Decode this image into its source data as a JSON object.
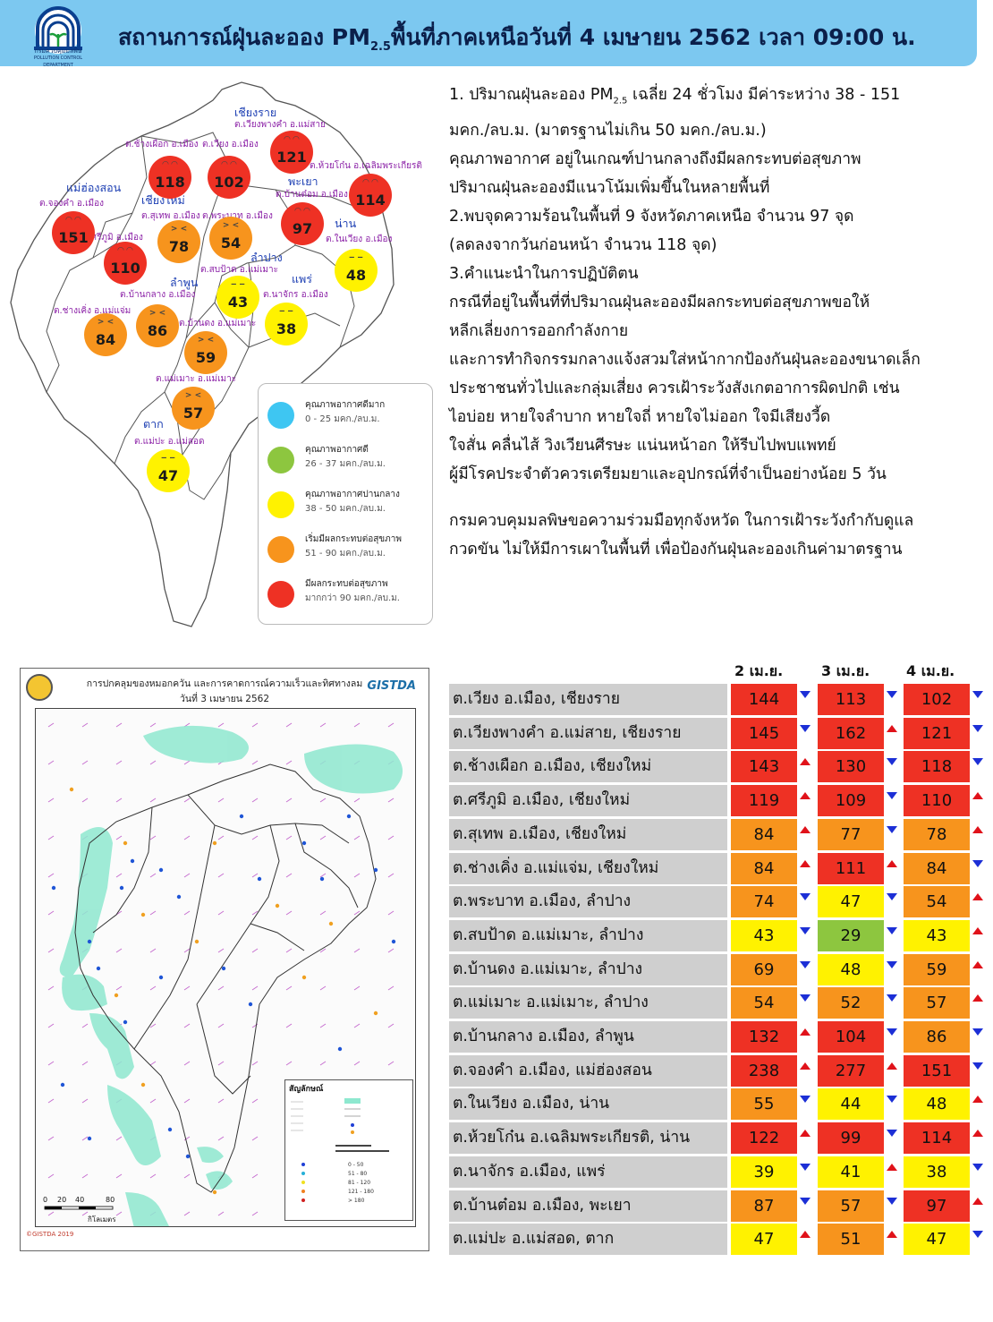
{
  "header": {
    "title_pre": "สถานการณ์ฝุ่นละออง PM",
    "title_sub": "2.5",
    "title_post": "พื้นที่ภาคเหนือวันที่ 4 เมษายน 2562 เวลา 09:00 น.",
    "logo_text": "กรมควบคุมมลพิษ",
    "logo_subtext": "POLLUTION CONTROL DEPARTMENT"
  },
  "colors": {
    "header_bg": "#7cc8f0",
    "very_good": "#3ec6f2",
    "good": "#8dc63f",
    "moderate": "#fff200",
    "unhealthy_start": "#f7941d",
    "unhealthy": "#ee3124",
    "arrow_up": "#e0121a",
    "arrow_down": "#1c2fd6"
  },
  "map": {
    "provinces": [
      {
        "name": "เชียงราย"
      },
      {
        "name": "แม่ฮ่องสอน"
      },
      {
        "name": "เชียงใหม่"
      },
      {
        "name": "พะเยา"
      },
      {
        "name": "น่าน"
      },
      {
        "name": "ลำปาง"
      },
      {
        "name": "ลำพูน"
      },
      {
        "name": "แพร่"
      },
      {
        "name": "ตาก"
      }
    ],
    "stations": [
      {
        "label": "ต.เวียงพางคำ อ.แม่สาย",
        "value": "121",
        "level": "unhealthy"
      },
      {
        "label": "ต.ช้างเผือก อ.เมือง",
        "value": "118",
        "level": "unhealthy"
      },
      {
        "label": "ต.เวียง อ.เมือง",
        "value": "102",
        "level": "unhealthy"
      },
      {
        "label": "ต.ห้วยโก๋น อ.เฉลิมพระเกียรติ",
        "value": "114",
        "level": "unhealthy"
      },
      {
        "label": "ต.จองคำ อ.เมือง",
        "value": "151",
        "level": "unhealthy"
      },
      {
        "label": "ต.สุเทพ อ.เมือง",
        "value": "78",
        "level": "unhealthy_start"
      },
      {
        "label": "ต.พระบาท อ.เมือง",
        "value": "54",
        "level": "unhealthy_start"
      },
      {
        "label": "ต.บ้านต๋อม อ.เมือง",
        "value": "97",
        "level": "unhealthy"
      },
      {
        "label": "ต.ในเวียง อ.เมือง",
        "value": "48",
        "level": "moderate"
      },
      {
        "label": "ต.ศรีภูมิ อ.เมือง",
        "value": "110",
        "level": "unhealthy"
      },
      {
        "label": "ต.สบป้าด อ.แม่เมาะ",
        "value": "43",
        "level": "moderate"
      },
      {
        "label": "ต.นาจักร อ.เมือง",
        "value": "38",
        "level": "moderate"
      },
      {
        "label": "ต.บ้านกลาง อ.เมือง",
        "value": "86",
        "level": "unhealthy_start"
      },
      {
        "label": "ต.ช่างเคิ่ง อ.แม่แจ่ม",
        "value": "84",
        "level": "unhealthy_start"
      },
      {
        "label": "ต.บ้านดง อ.แม่เมาะ",
        "value": "59",
        "level": "unhealthy_start"
      },
      {
        "label": "ต.แม่เมาะ อ.แม่เมาะ",
        "value": "57",
        "level": "unhealthy_start"
      },
      {
        "label": "ต.แม่ปะ อ.แม่สอด",
        "value": "47",
        "level": "moderate"
      }
    ]
  },
  "legend": [
    {
      "title": "คุณภาพอากาศดีมาก",
      "range": "0 - 25 มคก./ลบ.ม.",
      "level": "very_good"
    },
    {
      "title": "คุณภาพอากาศดี",
      "range": "26 - 37 มคก./ลบ.ม.",
      "level": "good"
    },
    {
      "title": "คุณภาพอากาศปานกลาง",
      "range": "38 - 50 มคก./ลบ.ม.",
      "level": "moderate"
    },
    {
      "title": "เริ่มมีผลกระทบต่อสุขภาพ",
      "range": "51 - 90 มคก./ลบ.ม.",
      "level": "unhealthy_start"
    },
    {
      "title": "มีผลกระทบต่อสุขภาพ",
      "range": "มากกว่า 90 มคก./ลบ.ม.",
      "level": "unhealthy"
    }
  ],
  "summary": {
    "line1_pre": "1. ปริมาณฝุ่นละออง PM",
    "line1_sub": "2.5",
    "line1_post": " เฉลี่ย 24 ชั่วโมง มีค่าระหว่าง 38 - 151",
    "lines": [
      "มคก./ลบ.ม. (มาตรฐานไม่เกิน 50 มคก./ลบ.ม.)",
      "คุณภาพอากาศ อยู่ในเกณฑ์ปานกลางถึงมีผลกระทบต่อสุขภาพ",
      "ปริมาณฝุ่นละอองมีแนวโน้มเพิ่มขึ้นในหลายพื้นที่",
      "2.พบจุดความร้อนในพื้นที่ 9 จังหวัดภาคเหนือ จำนวน 97 จุด",
      "(ลดลงจากวันก่อนหน้า จำนวน 118 จุด)",
      "3.คำแนะนำในการปฏิบัติตน",
      "กรณีที่อยู่ในพื้นที่ที่ปริมาณฝุ่นละอองมีผลกระทบต่อสุขภาพขอให้",
      "หลีกเลี่ยงการออกกำลังกาย",
      "และการทำกิจกรรมกลางแจ้งสวมใส่หน้ากากป้องกันฝุ่นละอองขนาดเล็ก",
      "ประชาชนทั่วไปและกลุ่มเสี่ยง ควรเฝ้าระวังสังเกตอาการผิดปกติ เช่น",
      "ไอบ่อย หายใจลำบาก หายใจถี่ หายใจไม่ออก ใจมีเสียงวี้ด",
      "ใจสั่น คลื่นไส้ วิงเวียนศีรษะ แน่นหน้าอก ให้รีบไปพบแพทย์",
      "ผู้มีโรคประจำตัวควรเตรียมยาและอุปกรณ์ที่จำเป็นอย่างน้อย 5 วัน"
    ],
    "closing": [
      "กรมควบคุมมลพิษขอความร่วมมือทุกจังหวัด ในการเฝ้าระวังกำกับดูแล",
      "กวดขัน ไม่ให้มีการเผาในพื้นที่ เพื่อป้องกันฝุ่นละอองเกินค่ามาตรฐาน"
    ]
  },
  "forecast_map": {
    "title": "การปกคลุมของหมอกควัน และการคาดการณ์ความเร็วและทิศทางลม",
    "date": "วันที่ 3 เมษายน 2562",
    "brand": "GISTDA",
    "legend_title": "สัญลักษณ์",
    "scale_labels": [
      "0",
      "20",
      "40",
      "80"
    ],
    "scale_unit": "กิโลเมตร",
    "copyright": "©GISTDA 2019"
  },
  "table": {
    "dates": [
      "2 เม.ย.",
      "3 เม.ย.",
      "4 เม.ย."
    ],
    "rows": [
      {
        "name": "ต.เวียง อ.เมือง, เชียงราย",
        "values": [
          "144",
          "113",
          "102"
        ],
        "levels": [
          "unhealthy",
          "unhealthy",
          "unhealthy"
        ],
        "trends": [
          "down",
          "down",
          "down"
        ]
      },
      {
        "name": "ต.เวียงพางคำ อ.แม่สาย, เชียงราย",
        "values": [
          "145",
          "162",
          "121"
        ],
        "levels": [
          "unhealthy",
          "unhealthy",
          "unhealthy"
        ],
        "trends": [
          "down",
          "up",
          "down"
        ]
      },
      {
        "name": "ต.ช้างเผือก อ.เมือง, เชียงใหม่",
        "values": [
          "143",
          "130",
          "118"
        ],
        "levels": [
          "unhealthy",
          "unhealthy",
          "unhealthy"
        ],
        "trends": [
          "up",
          "down",
          "down"
        ]
      },
      {
        "name": "ต.ศรีภูมิ อ.เมือง, เชียงใหม่",
        "values": [
          "119",
          "109",
          "110"
        ],
        "levels": [
          "unhealthy",
          "unhealthy",
          "unhealthy"
        ],
        "trends": [
          "up",
          "down",
          "up"
        ]
      },
      {
        "name": "ต.สุเทพ อ.เมือง, เชียงใหม่",
        "values": [
          "84",
          "77",
          "78"
        ],
        "levels": [
          "unhealthy_start",
          "unhealthy_start",
          "unhealthy_start"
        ],
        "trends": [
          "up",
          "down",
          "up"
        ]
      },
      {
        "name": "ต.ช่างเคิ่ง อ.แม่แจ่ม, เชียงใหม่",
        "values": [
          "84",
          "111",
          "84"
        ],
        "levels": [
          "unhealthy_start",
          "unhealthy",
          "unhealthy_start"
        ],
        "trends": [
          "up",
          "up",
          "down"
        ]
      },
      {
        "name": "ต.พระบาท อ.เมือง, ลำปาง",
        "values": [
          "74",
          "47",
          "54"
        ],
        "levels": [
          "unhealthy_start",
          "moderate",
          "unhealthy_start"
        ],
        "trends": [
          "down",
          "down",
          "up"
        ]
      },
      {
        "name": "ต.สบป้าด อ.แม่เมาะ, ลำปาง",
        "values": [
          "43",
          "29",
          "43"
        ],
        "levels": [
          "moderate",
          "good",
          "moderate"
        ],
        "trends": [
          "down",
          "down",
          "up"
        ]
      },
      {
        "name": "ต.บ้านดง อ.แม่เมาะ, ลำปาง",
        "values": [
          "69",
          "48",
          "59"
        ],
        "levels": [
          "unhealthy_start",
          "moderate",
          "unhealthy_start"
        ],
        "trends": [
          "down",
          "down",
          "up"
        ]
      },
      {
        "name": "ต.แม่เมาะ อ.แม่เมาะ, ลำปาง",
        "values": [
          "54",
          "52",
          "57"
        ],
        "levels": [
          "unhealthy_start",
          "unhealthy_start",
          "unhealthy_start"
        ],
        "trends": [
          "down",
          "down",
          "up"
        ]
      },
      {
        "name": "ต.บ้านกลาง อ.เมือง, ลำพูน",
        "values": [
          "132",
          "104",
          "86"
        ],
        "levels": [
          "unhealthy",
          "unhealthy",
          "unhealthy_start"
        ],
        "trends": [
          "up",
          "down",
          "down"
        ]
      },
      {
        "name": "ต.จองคำ อ.เมือง, แม่ฮ่องสอน",
        "values": [
          "238",
          "277",
          "151"
        ],
        "levels": [
          "unhealthy",
          "unhealthy",
          "unhealthy"
        ],
        "trends": [
          "up",
          "up",
          "down"
        ]
      },
      {
        "name": "ต.ในเวียง อ.เมือง, น่าน",
        "values": [
          "55",
          "44",
          "48"
        ],
        "levels": [
          "unhealthy_start",
          "moderate",
          "moderate"
        ],
        "trends": [
          "down",
          "down",
          "up"
        ]
      },
      {
        "name": "ต.ห้วยโก๋น อ.เฉลิมพระเกียรติ, น่าน",
        "values": [
          "122",
          "99",
          "114"
        ],
        "levels": [
          "unhealthy",
          "unhealthy",
          "unhealthy"
        ],
        "trends": [
          "up",
          "down",
          "up"
        ]
      },
      {
        "name": "ต.นาจักร อ.เมือง, แพร่",
        "values": [
          "39",
          "41",
          "38"
        ],
        "levels": [
          "moderate",
          "moderate",
          "moderate"
        ],
        "trends": [
          "down",
          "up",
          "down"
        ]
      },
      {
        "name": "ต.บ้านต๋อม อ.เมือง, พะเยา",
        "values": [
          "87",
          "57",
          "97"
        ],
        "levels": [
          "unhealthy_start",
          "unhealthy_start",
          "unhealthy"
        ],
        "trends": [
          "down",
          "down",
          "up"
        ]
      },
      {
        "name": "ต.แม่ปะ อ.แม่สอด, ตาก",
        "values": [
          "47",
          "51",
          "47"
        ],
        "levels": [
          "moderate",
          "unhealthy_start",
          "moderate"
        ],
        "trends": [
          "up",
          "up",
          "down"
        ]
      }
    ]
  }
}
